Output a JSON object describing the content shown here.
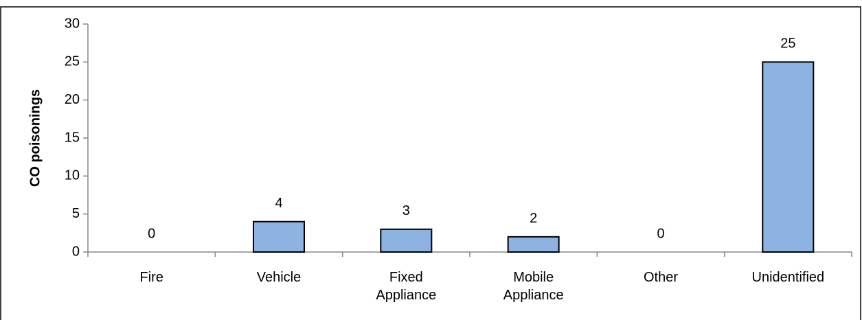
{
  "chart_data": {
    "type": "bar",
    "y_label": "CO poisonings",
    "categories": [
      "Fire",
      "Vehicle",
      "Fixed Appliance",
      "Mobile Appliance",
      "Other",
      "Unidentified"
    ],
    "values": [
      0,
      4,
      3,
      2,
      0,
      25
    ],
    "color": "#8db3e2",
    "ylim": [
      0,
      30
    ],
    "yticks": [
      0,
      5,
      10,
      15,
      20,
      25,
      30
    ],
    "grid": false
  }
}
